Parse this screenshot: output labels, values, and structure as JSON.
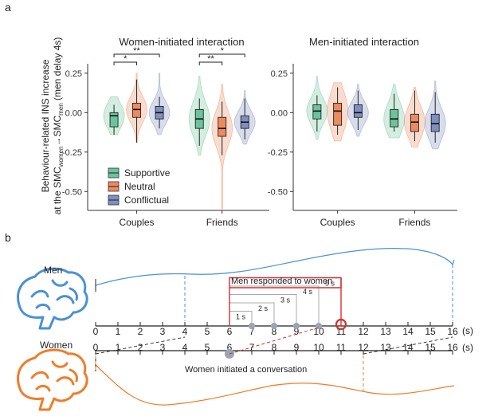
{
  "panel_labels": {
    "a": "a",
    "b": "b"
  },
  "colors": {
    "supportive": "#6cc49c",
    "neutral": "#ee8a60",
    "conflictual": "#7f8fbf",
    "men": "#4a90d9",
    "women": "#ef7d29",
    "response": "#d32f2f",
    "bracket": "#aaaaaa"
  },
  "chart_data": [
    {
      "type": "violin",
      "title": "Women-initiated interaction",
      "ylabel_line1": "Behaviour-related INS increase",
      "ylabel_line2_parts": [
        "at the SMC",
        "women",
        "→SMC",
        "men",
        " (men delay 4s)"
      ],
      "ylim": [
        -0.62,
        0.31
      ],
      "yticks": [
        0.25,
        0.0,
        -0.25,
        -0.5
      ],
      "ytick_labels": [
        "0.25",
        "0.00",
        "-0.25",
        "-0.50"
      ],
      "categories": [
        "Couples",
        "Friends"
      ],
      "legend": [
        "Supportive",
        "Neutral",
        "Conflictual"
      ],
      "series": [
        {
          "group": "Couples",
          "name": "Supportive",
          "q1": -0.09,
          "median": -0.02,
          "q3": 0.0,
          "whisk_lo": -0.14,
          "whisk_hi": 0.05,
          "vmin": -0.14,
          "vmax": 0.1
        },
        {
          "group": "Couples",
          "name": "Neutral",
          "q1": -0.03,
          "median": 0.02,
          "q3": 0.06,
          "whisk_lo": -0.19,
          "whisk_hi": 0.21,
          "vmin": -0.19,
          "vmax": 0.25
        },
        {
          "group": "Couples",
          "name": "Conflictual",
          "q1": -0.04,
          "median": 0.0,
          "q3": 0.04,
          "whisk_lo": -0.1,
          "whisk_hi": 0.1,
          "vmin": -0.14,
          "vmax": 0.25
        },
        {
          "group": "Friends",
          "name": "Supportive",
          "q1": -0.1,
          "median": -0.04,
          "q3": 0.02,
          "whisk_lo": -0.21,
          "whisk_hi": 0.09,
          "vmin": -0.27,
          "vmax": 0.23
        },
        {
          "group": "Friends",
          "name": "Neutral",
          "q1": -0.15,
          "median": -0.1,
          "q3": -0.03,
          "whisk_lo": -0.27,
          "whisk_hi": 0.07,
          "vmin": -0.61,
          "vmax": 0.18
        },
        {
          "group": "Friends",
          "name": "Conflictual",
          "q1": -0.1,
          "median": -0.06,
          "q3": -0.02,
          "whisk_lo": -0.17,
          "whisk_hi": 0.09,
          "vmin": -0.2,
          "vmax": 0.14
        }
      ],
      "significance": [
        {
          "group": "Couples",
          "from": "Supportive",
          "to": "Conflictual",
          "label": "**",
          "level": 2
        },
        {
          "group": "Couples",
          "from": "Supportive",
          "to": "Neutral",
          "label": "*",
          "level": 1
        },
        {
          "group": "Friends",
          "from": "Supportive",
          "to": "Conflictual",
          "label": "*",
          "level": 2
        },
        {
          "group": "Friends",
          "from": "Supportive",
          "to": "Neutral",
          "label": "**",
          "level": 1
        }
      ]
    },
    {
      "type": "violin",
      "title": "Men-initiated interaction",
      "ylim": [
        -0.62,
        0.31
      ],
      "yticks": [
        0.25,
        0.0,
        -0.25,
        -0.5
      ],
      "ytick_labels": [
        "0.25",
        "0.00",
        "-0.25",
        "-0.50"
      ],
      "categories": [
        "Couples",
        "Friends"
      ],
      "series": [
        {
          "group": "Couples",
          "name": "Supportive",
          "q1": -0.04,
          "median": 0.01,
          "q3": 0.05,
          "whisk_lo": -0.12,
          "whisk_hi": 0.11,
          "vmin": -0.17,
          "vmax": 0.23
        },
        {
          "group": "Couples",
          "name": "Neutral",
          "q1": -0.08,
          "median": 0.01,
          "q3": 0.06,
          "whisk_lo": -0.14,
          "whisk_hi": 0.16,
          "vmin": -0.18,
          "vmax": 0.19
        },
        {
          "group": "Couples",
          "name": "Conflictual",
          "q1": -0.03,
          "median": 0.0,
          "q3": 0.05,
          "whisk_lo": -0.11,
          "whisk_hi": 0.14,
          "vmin": -0.15,
          "vmax": 0.18
        },
        {
          "group": "Friends",
          "name": "Supportive",
          "q1": -0.09,
          "median": -0.04,
          "q3": 0.02,
          "whisk_lo": -0.12,
          "whisk_hi": 0.12,
          "vmin": -0.16,
          "vmax": 0.18
        },
        {
          "group": "Friends",
          "name": "Neutral",
          "q1": -0.12,
          "median": -0.06,
          "q3": -0.01,
          "whisk_lo": -0.18,
          "whisk_hi": 0.14,
          "vmin": -0.22,
          "vmax": 0.16
        },
        {
          "group": "Friends",
          "name": "Conflictual",
          "q1": -0.12,
          "median": -0.07,
          "q3": -0.01,
          "whisk_lo": -0.19,
          "whisk_hi": 0.13,
          "vmin": -0.23,
          "vmax": 0.2
        }
      ]
    }
  ],
  "timeline": {
    "men_label": "Men",
    "women_label": "Women",
    "response_label": "Men responded to women",
    "initiated_label": "Women initiated a conversation",
    "unit_label": "(s)",
    "men_ticks": [
      "0",
      "1",
      "2",
      "3",
      "4",
      "5",
      "6",
      "7",
      "8",
      "9",
      "10",
      "11",
      "12",
      "13",
      "14",
      "15",
      "16"
    ],
    "women_ticks": [
      "0",
      "1",
      "2",
      "3",
      "4",
      "5",
      "6",
      "7",
      "8",
      "9",
      "10",
      "11",
      "12",
      "13",
      "14",
      "15",
      "16"
    ],
    "delays": [
      "1 s",
      "2 s",
      "3 s",
      "4 s",
      "5 s"
    ],
    "initiation_time_s": 6,
    "response_time_s": 11,
    "men_window_s": [
      4,
      16
    ],
    "women_window_s": [
      0,
      12
    ]
  }
}
